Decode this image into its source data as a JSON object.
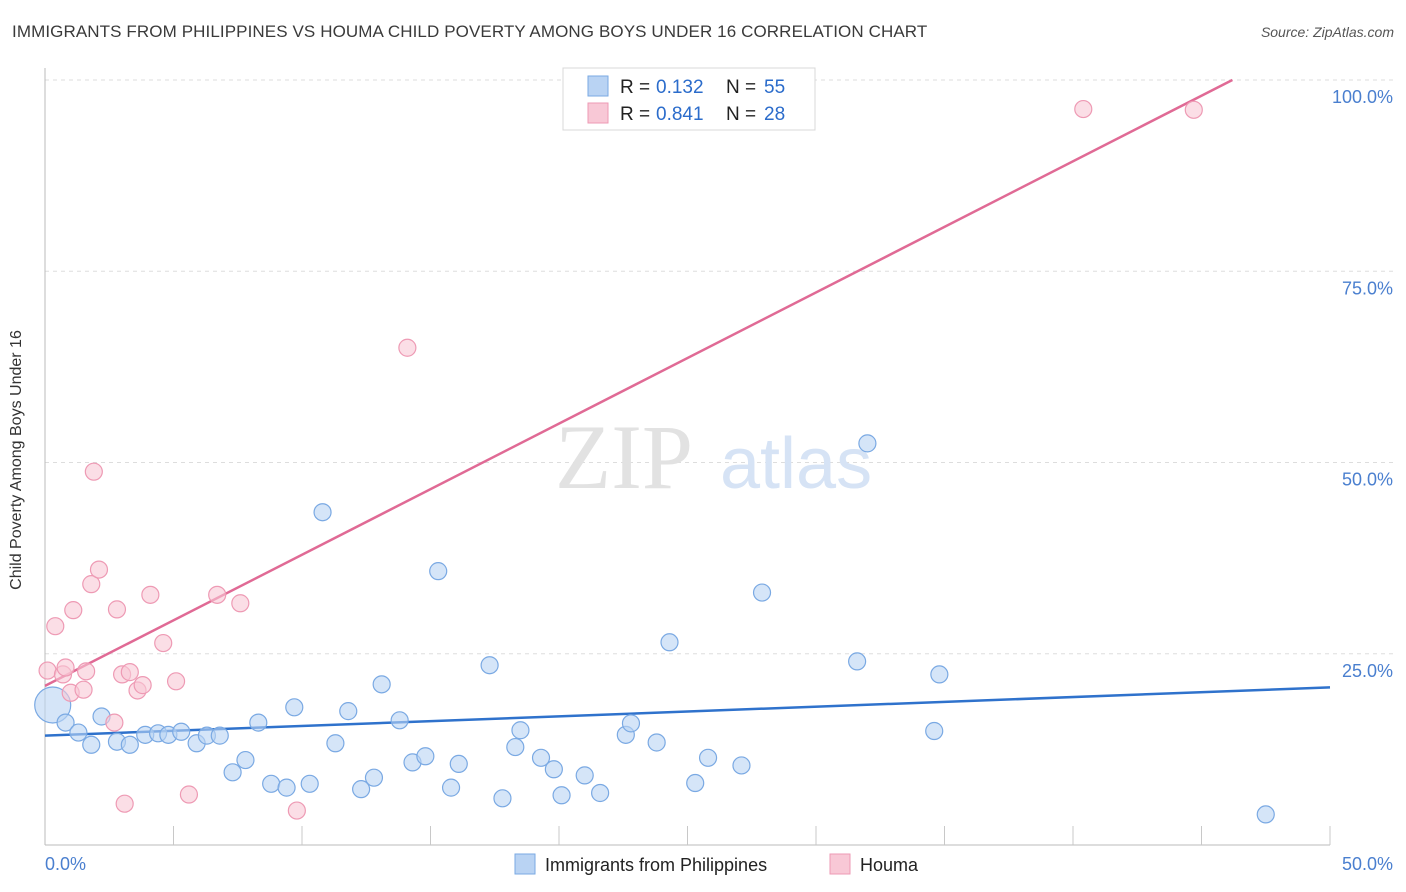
{
  "title": "IMMIGRANTS FROM PHILIPPINES VS HOUMA CHILD POVERTY AMONG BOYS UNDER 16 CORRELATION CHART",
  "source": "Source: ZipAtlas.com",
  "watermark": {
    "zip": "ZIP",
    "atlas": "atlas"
  },
  "colors": {
    "blue_fill": "#b9d3f3",
    "blue_stroke": "#7aa9e3",
    "blue_line": "#2f72cc",
    "pink_fill": "#f8c8d6",
    "pink_stroke": "#ee9ab4",
    "pink_line": "#e06a95",
    "grid": "#dddddd",
    "tick_text": "#4a7fcf"
  },
  "legend": [
    {
      "r_label": "R =",
      "r_value": "0.132",
      "n_label": "N =",
      "n_value": "55"
    },
    {
      "r_label": "R =",
      "r_value": "0.841",
      "n_label": "N =",
      "n_value": "28"
    }
  ],
  "chart_data": {
    "type": "scatter",
    "title": "IMMIGRANTS FROM PHILIPPINES VS HOUMA CHILD POVERTY AMONG BOYS UNDER 16 CORRELATION CHART",
    "xlabel": "",
    "ylabel": "Child Poverty Among Boys Under 16",
    "xlim": [
      0,
      50
    ],
    "ylim": [
      0,
      100
    ],
    "x_tick_labels": [
      {
        "value": 0,
        "label": "0.0%"
      },
      {
        "value": 50,
        "label": "50.0%"
      }
    ],
    "y_tick_labels": [
      {
        "value": 25,
        "label": "25.0%"
      },
      {
        "value": 50,
        "label": "50.0%"
      },
      {
        "value": 75,
        "label": "75.0%"
      },
      {
        "value": 100,
        "label": "100.0%"
      }
    ],
    "grid": true,
    "legend_position": "top-center",
    "series": [
      {
        "name": "Immigrants from Philippines",
        "color": "blue",
        "trend": {
          "x": [
            0,
            50
          ],
          "y": [
            14.3,
            20.6
          ]
        },
        "points": [
          [
            0.3,
            18.3,
            "large"
          ],
          [
            0.8,
            16.0
          ],
          [
            1.3,
            14.7
          ],
          [
            1.8,
            13.1
          ],
          [
            2.2,
            16.8
          ],
          [
            2.8,
            13.5
          ],
          [
            3.3,
            13.1
          ],
          [
            3.9,
            14.4
          ],
          [
            4.4,
            14.6
          ],
          [
            4.8,
            14.4
          ],
          [
            5.3,
            14.8
          ],
          [
            5.9,
            13.3
          ],
          [
            6.3,
            14.3
          ],
          [
            6.8,
            14.3
          ],
          [
            7.3,
            9.5
          ],
          [
            7.8,
            11.1
          ],
          [
            8.3,
            16.0
          ],
          [
            8.8,
            8.0
          ],
          [
            9.4,
            7.5
          ],
          [
            9.7,
            18.0
          ],
          [
            10.3,
            8.0
          ],
          [
            10.8,
            43.5
          ],
          [
            11.3,
            13.3
          ],
          [
            11.8,
            17.5
          ],
          [
            12.3,
            7.3
          ],
          [
            12.8,
            8.8
          ],
          [
            13.1,
            21.0
          ],
          [
            13.8,
            16.3
          ],
          [
            14.3,
            10.8
          ],
          [
            14.8,
            11.6
          ],
          [
            15.3,
            35.8
          ],
          [
            15.8,
            7.5
          ],
          [
            16.1,
            10.6
          ],
          [
            17.3,
            23.5
          ],
          [
            17.8,
            6.1
          ],
          [
            18.3,
            12.8
          ],
          [
            18.5,
            15.0
          ],
          [
            19.3,
            11.4
          ],
          [
            19.8,
            9.9
          ],
          [
            20.1,
            6.5
          ],
          [
            21.0,
            9.1
          ],
          [
            21.6,
            6.8
          ],
          [
            22.6,
            14.4
          ],
          [
            22.8,
            15.9
          ],
          [
            23.8,
            13.4
          ],
          [
            24.3,
            26.5
          ],
          [
            25.3,
            8.1
          ],
          [
            25.8,
            11.4
          ],
          [
            27.1,
            10.4
          ],
          [
            27.9,
            33.0
          ],
          [
            31.6,
            24.0
          ],
          [
            32.0,
            52.5
          ],
          [
            34.6,
            14.9
          ],
          [
            34.8,
            22.3
          ],
          [
            47.5,
            4.0
          ]
        ]
      },
      {
        "name": "Houma",
        "color": "pink",
        "trend": {
          "x": [
            0,
            46.2
          ],
          "y": [
            20.8,
            100
          ]
        },
        "points": [
          [
            0.1,
            22.8
          ],
          [
            0.4,
            28.6
          ],
          [
            0.7,
            22.3
          ],
          [
            0.8,
            23.2
          ],
          [
            1.0,
            19.9
          ],
          [
            1.1,
            30.7
          ],
          [
            1.5,
            20.3
          ],
          [
            1.6,
            22.7
          ],
          [
            1.8,
            34.1
          ],
          [
            1.9,
            48.8
          ],
          [
            2.1,
            36.0
          ],
          [
            2.7,
            16.0
          ],
          [
            2.8,
            30.8
          ],
          [
            3.0,
            22.3
          ],
          [
            3.1,
            5.4
          ],
          [
            3.3,
            22.6
          ],
          [
            3.6,
            20.2
          ],
          [
            3.8,
            20.9
          ],
          [
            4.1,
            32.7
          ],
          [
            4.6,
            26.4
          ],
          [
            5.1,
            21.4
          ],
          [
            5.6,
            6.6
          ],
          [
            6.7,
            32.7
          ],
          [
            7.6,
            31.6
          ],
          [
            9.8,
            4.5
          ],
          [
            14.1,
            65.0
          ],
          [
            40.4,
            96.2
          ],
          [
            44.7,
            96.1
          ]
        ]
      }
    ]
  },
  "bottom_legend": [
    {
      "label": "Immigrants from Philippines"
    },
    {
      "label": "Houma"
    }
  ]
}
